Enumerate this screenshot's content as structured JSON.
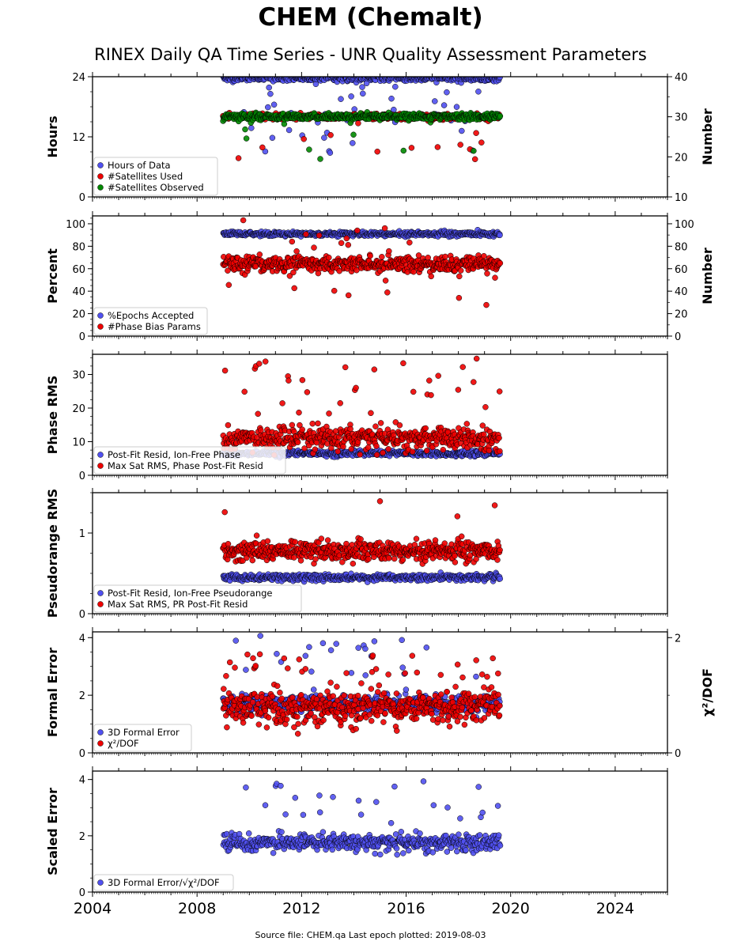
{
  "title": "CHEM (Chemalt)",
  "subtitle": "RINEX Daily QA Time Series - UNR Quality Assessment Parameters",
  "footer": "Source file: CHEM.qa Last epoch plotted: 2019-08-03",
  "colors": {
    "blue": "#5050f0",
    "red": "#ee0000",
    "green": "#008800"
  },
  "chart_data": [
    {
      "type": "scatter",
      "ylabel": "Hours",
      "ylabel_right": "Number",
      "ylim": [
        0,
        24
      ],
      "yticks": [
        0,
        12,
        24
      ],
      "ylim_right": [
        10,
        40
      ],
      "yticks_right": [
        10,
        20,
        30,
        40
      ],
      "x_range": [
        2004,
        2026
      ],
      "legend_position": "lower-left",
      "series": [
        {
          "name": "Hours of Data",
          "color": "blue",
          "axis": "left",
          "base": 23.7,
          "spread": 0.6,
          "outlier_range": [
            7.5,
            23
          ],
          "outlier_rate": 0.08
        },
        {
          "name": "#Satellites Used",
          "color": "red",
          "axis": "right",
          "base": 30,
          "spread": 0.7,
          "outlier_range": [
            19,
            30
          ],
          "outlier_rate": 0.03
        },
        {
          "name": "#Satellites Observed",
          "color": "green",
          "axis": "right",
          "base": 30,
          "spread": 0.8,
          "outlier_range": [
            19,
            30
          ],
          "outlier_rate": 0.02
        }
      ]
    },
    {
      "type": "scatter",
      "ylabel": "Percent",
      "ylabel_right": "Number",
      "ylim": [
        0,
        107
      ],
      "yticks": [
        0,
        20,
        40,
        60,
        80,
        100
      ],
      "ylim_right": [
        0,
        107
      ],
      "yticks_right": [
        0,
        20,
        40,
        60,
        80,
        100
      ],
      "x_range": [
        2004,
        2026
      ],
      "legend_position": "lower-left",
      "series": [
        {
          "name": "%Epochs Accepted",
          "color": "blue",
          "axis": "left",
          "base": 91,
          "spread": 2,
          "outlier_range": [
            85,
            98
          ],
          "outlier_rate": 0.01
        },
        {
          "name": "#Phase Bias Params",
          "color": "red",
          "axis": "right",
          "base": 64,
          "spread": 7,
          "outlier_range": [
            22,
            105
          ],
          "outlier_rate": 0.04
        }
      ]
    },
    {
      "type": "scatter",
      "ylabel": "Phase RMS",
      "ylim": [
        0,
        36
      ],
      "yticks": [
        0,
        10,
        20,
        30
      ],
      "x_range": [
        2004,
        2026
      ],
      "legend_position": "lower-left",
      "series": [
        {
          "name": "Post-Fit Resid, Ion-Free Phase",
          "color": "blue",
          "axis": "left",
          "base": 6.5,
          "spread": 0.8,
          "outlier_range": [
            5,
            8
          ],
          "outlier_rate": 0
        },
        {
          "name": "Max Sat RMS, Phase Post-Fit Resid",
          "color": "red",
          "axis": "left",
          "base": 11,
          "spread": 3.5,
          "outlier_range": [
            18,
            35
          ],
          "outlier_rate": 0.04
        }
      ]
    },
    {
      "type": "scatter",
      "ylabel": "Pseudorange RMS",
      "ylim": [
        0,
        1.5
      ],
      "yticks": [
        0,
        1
      ],
      "x_range": [
        2004,
        2026
      ],
      "legend_position": "lower-left",
      "series": [
        {
          "name": "Post-Fit Resid, Ion-Free Pseudorange",
          "color": "blue",
          "axis": "left",
          "base": 0.45,
          "spread": 0.04,
          "outlier_range": [
            0.3,
            0.5
          ],
          "outlier_rate": 0
        },
        {
          "name": "Max Sat RMS, PR Post-Fit Resid",
          "color": "red",
          "axis": "left",
          "base": 0.78,
          "spread": 0.12,
          "outlier_range": [
            1.05,
            1.45
          ],
          "outlier_rate": 0.01
        }
      ]
    },
    {
      "type": "scatter",
      "ylabel": "Formal Error",
      "ylabel_right": "χ²/DOF",
      "ylim": [
        0,
        4.2
      ],
      "yticks": [
        0,
        2,
        4
      ],
      "ylim_right": [
        0,
        2.1
      ],
      "yticks_right": [
        0,
        2
      ],
      "x_range": [
        2004,
        2026
      ],
      "legend_position": "lower-left",
      "series": [
        {
          "name": "3D Formal Error",
          "color": "blue",
          "axis": "left",
          "base": 1.7,
          "spread": 0.3,
          "outlier_range": [
            2.4,
            4.1
          ],
          "outlier_rate": 0.04
        },
        {
          "name": "χ²/DOF",
          "color": "red",
          "axis": "right",
          "base": 0.8,
          "spread": 0.3,
          "outlier_range": [
            1.3,
            1.8
          ],
          "outlier_rate": 0.05
        }
      ]
    },
    {
      "type": "scatter",
      "ylabel": "Scaled Error",
      "ylim": [
        0,
        4.3
      ],
      "yticks": [
        0,
        2,
        4
      ],
      "x_range": [
        2004,
        2026
      ],
      "xticks": [
        2004,
        2008,
        2012,
        2016,
        2020,
        2024
      ],
      "legend_position": "lower-left",
      "series": [
        {
          "name": "3D Formal Error/√χ²/DOF",
          "color": "blue",
          "axis": "left",
          "base": 1.75,
          "spread": 0.3,
          "outlier_range": [
            2.4,
            4.1
          ],
          "outlier_rate": 0.03
        }
      ]
    }
  ],
  "data_span": [
    2009.0,
    2019.59
  ]
}
